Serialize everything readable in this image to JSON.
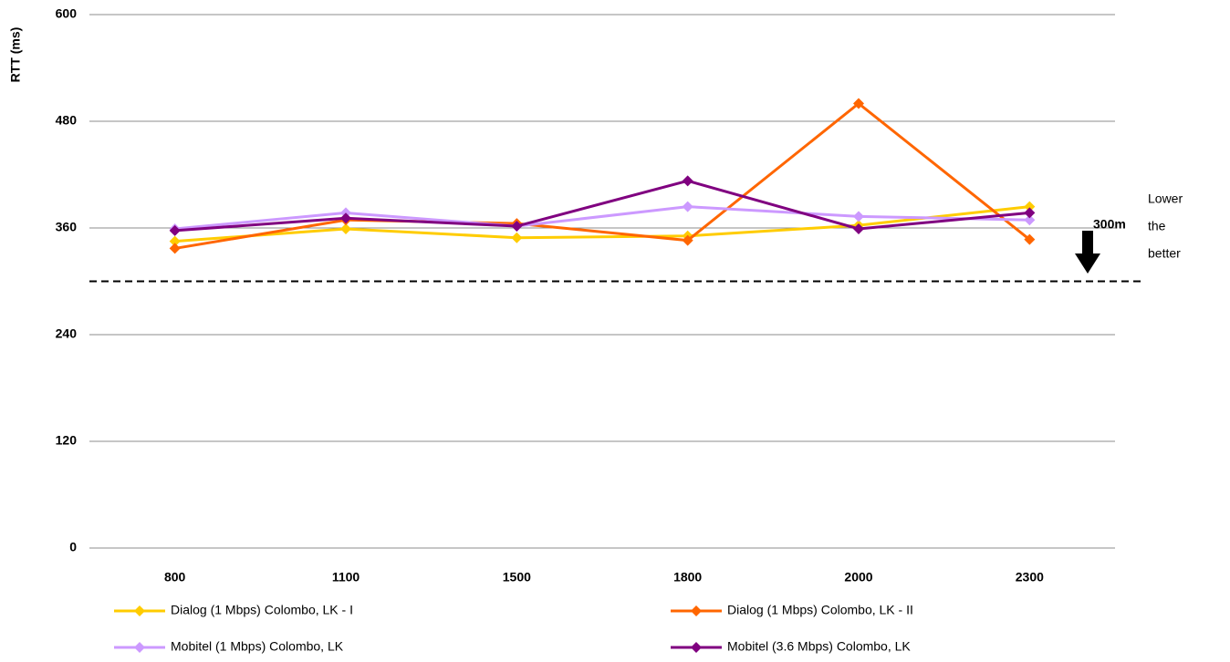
{
  "chart_data": {
    "type": "line",
    "y_label": "RTT (ms)",
    "categories": [
      "800",
      "1100",
      "1500",
      "1800",
      "2000",
      "2300"
    ],
    "series": [
      {
        "name": "Dialog (1 Mbps) Colombo, LK - I",
        "color": "#ffcc00",
        "values": [
          345,
          359,
          349,
          351,
          363,
          384
        ]
      },
      {
        "name": "Dialog (1 Mbps) Colombo, LK - II",
        "color": "#ff6600",
        "values": [
          337,
          369,
          365,
          346,
          500,
          347
        ]
      },
      {
        "name": "Mobitel (1 Mbps) Colombo, LK",
        "color": "#cc99ff",
        "values": [
          359,
          377,
          362,
          384,
          373,
          369
        ]
      },
      {
        "name": "Mobitel (3.6 Mbps) Colombo, LK",
        "color": "#800080",
        "values": [
          357,
          371,
          362,
          413,
          359,
          377
        ]
      }
    ],
    "ylim": [
      0,
      600
    ],
    "yticks": [
      0,
      120,
      240,
      360,
      480,
      600
    ],
    "grid": true,
    "reference_line": 300,
    "reference_label": "300m",
    "annotation": [
      "Lower",
      "the",
      "better"
    ]
  }
}
